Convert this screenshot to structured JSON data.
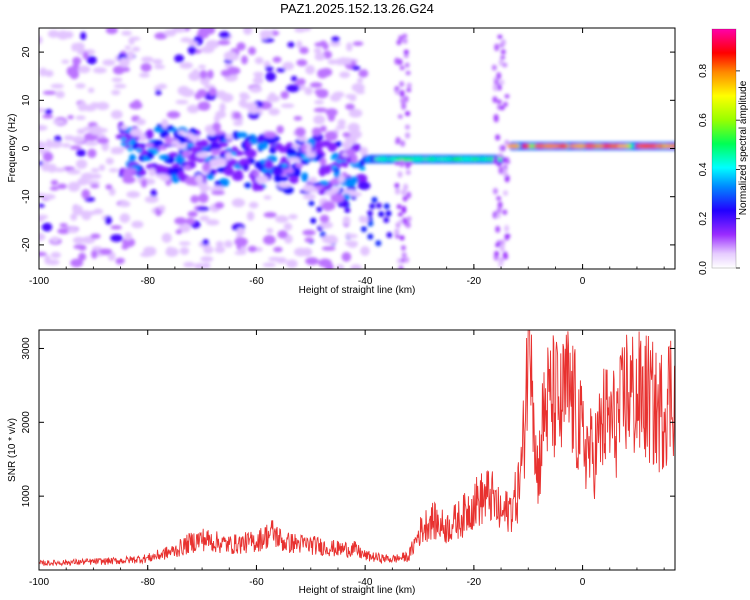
{
  "title": "PAZ1.2025.152.13.26.G24",
  "colors": {
    "snr_line": "#e8312f",
    "background": "#ffffff",
    "axis": "#000000"
  },
  "chart_data": [
    {
      "type": "heatmap",
      "xlabel": "Height of straight line (km)",
      "ylabel": "Frequency (Hz)",
      "xlim": [
        -100,
        17
      ],
      "ylim": [
        -25,
        25
      ],
      "xticks": [
        -100,
        -80,
        -60,
        -40,
        -20,
        0
      ],
      "yticks": [
        -20,
        -10,
        0,
        10,
        20
      ],
      "colorbar": {
        "label": "Normalized spectral amplitude",
        "range": [
          0,
          0.97
        ],
        "ticks": [
          0.0,
          0.2,
          0.4,
          0.6,
          0.8
        ],
        "colormap": "rainbow (magenta-blue-cyan-green-yellow-red-magenta)"
      },
      "features": [
        {
          "description": "strong carrier line",
          "x_range": [
            -13,
            17
          ],
          "frequency": 0.5,
          "amplitude": 0.85
        },
        {
          "description": "carrier line",
          "x_range": [
            -40,
            -15
          ],
          "frequency": -2.2,
          "amplitude": 0.5
        },
        {
          "description": "scattered band",
          "x_range": [
            -85,
            -40
          ],
          "frequency_range": [
            -8,
            4
          ],
          "amplitude": 0.25
        },
        {
          "description": "diffuse noise",
          "x_range": [
            -100,
            -40
          ],
          "frequency_range": [
            -25,
            25
          ],
          "amplitude": 0.08
        }
      ]
    },
    {
      "type": "line",
      "xlabel": "Height of straight line (km)",
      "ylabel": "SNR (10 * v/v)",
      "xlim": [
        -100,
        17
      ],
      "ylim": [
        0,
        3250
      ],
      "xticks": [
        -100,
        -80,
        -60,
        -40,
        -20,
        0
      ],
      "yticks": [
        1000,
        2000,
        3000
      ],
      "series": [
        {
          "x": [
            -100,
            -95,
            -90,
            -85,
            -80,
            -75,
            -72,
            -70,
            -65,
            -60,
            -57,
            -55,
            -50,
            -45,
            -42,
            -40,
            -37,
            -35,
            -32,
            -30,
            -28,
            -25,
            -22,
            -20,
            -17,
            -15,
            -13,
            -12,
            -11,
            -10,
            -9.5,
            -9,
            -8.5,
            -8,
            -7,
            -5,
            -4,
            -3,
            -2,
            0,
            2,
            4,
            6,
            7,
            8,
            10,
            12,
            14,
            16,
            17
          ],
          "y": [
            80,
            90,
            100,
            110,
            140,
            230,
            330,
            370,
            300,
            340,
            450,
            330,
            300,
            250,
            250,
            170,
            140,
            130,
            160,
            450,
            600,
            500,
            640,
            800,
            900,
            650,
            750,
            900,
            1350,
            2800,
            3200,
            2100,
            1150,
            1250,
            1950,
            2050,
            1900,
            2150,
            2050,
            1550,
            1350,
            1800,
            1750,
            1850,
            2150,
            2050,
            2050,
            1850,
            2100,
            2200
          ]
        }
      ]
    }
  ]
}
